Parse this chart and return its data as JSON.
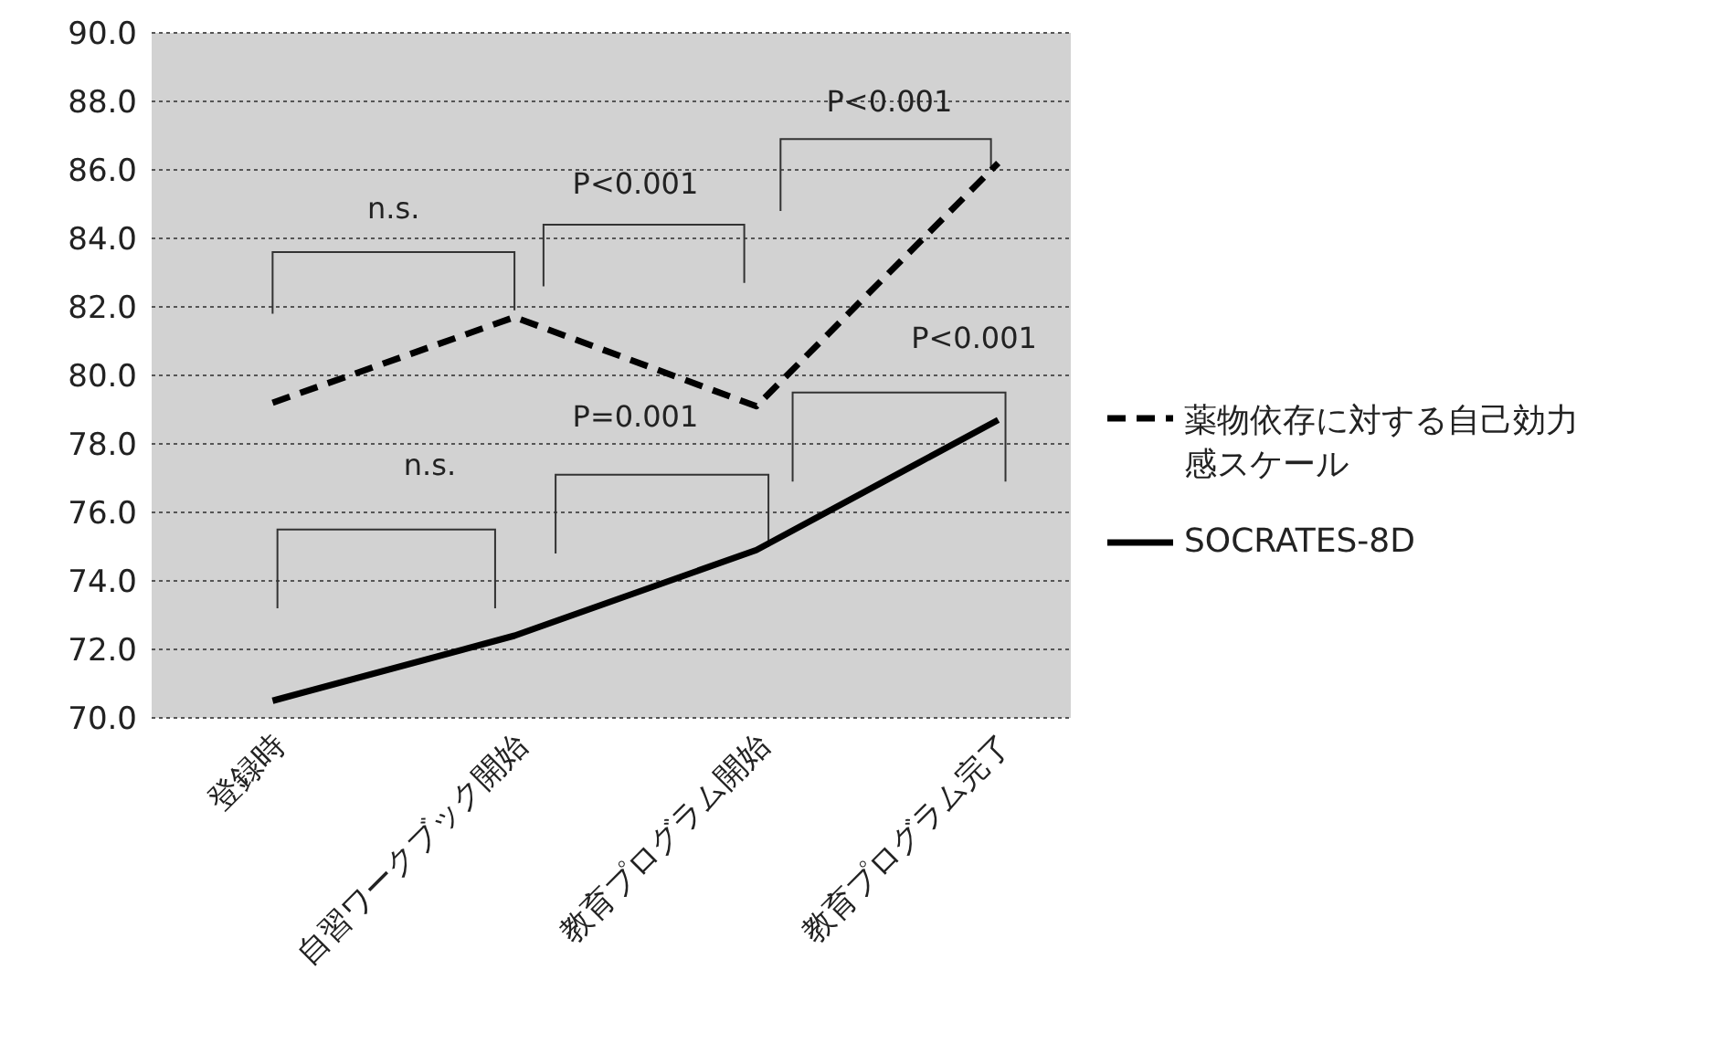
{
  "chart_data": {
    "type": "line",
    "categories": [
      "登録時",
      "自習ワークブック開始",
      "教育プログラム開始",
      "教育プログラム完了"
    ],
    "series": [
      {
        "name": "薬物依存に対する自己効力感スケール",
        "color": "#000000",
        "line_style": "dashed",
        "values": [
          79.2,
          81.7,
          79.1,
          86.2
        ]
      },
      {
        "name": "SOCRATES-8D",
        "color": "#000000",
        "line_style": "solid",
        "values": [
          70.5,
          72.4,
          74.9,
          78.7
        ]
      }
    ],
    "ylim": [
      70,
      90
    ],
    "yticks": [
      {
        "value": 70,
        "label": "70.0"
      },
      {
        "value": 72,
        "label": "72.0"
      },
      {
        "value": 74,
        "label": "74.0"
      },
      {
        "value": 76,
        "label": "76.0"
      },
      {
        "value": 78,
        "label": "78.0"
      },
      {
        "value": 80,
        "label": "80.0"
      },
      {
        "value": 82,
        "label": "82.0"
      },
      {
        "value": 84,
        "label": "84.0"
      },
      {
        "value": 86,
        "label": "86.0"
      },
      {
        "value": 88,
        "label": "88.0"
      },
      {
        "value": 90,
        "label": "90.0"
      }
    ],
    "grid": "y",
    "legend": "right",
    "marker": "none",
    "annotations": [
      "n.s.",
      "P<0.001",
      "P<0.001",
      "P<0.001",
      "P=0.001",
      "n.s."
    ]
  }
}
